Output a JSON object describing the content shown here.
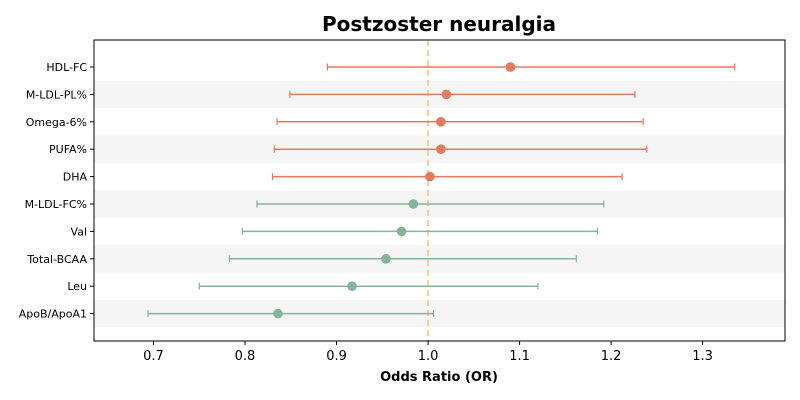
{
  "chart_data": {
    "type": "forest",
    "title": "Postzoster neuralgia",
    "xlabel": "Odds Ratio (OR)",
    "ylabel": "",
    "xlim": [
      0.635,
      1.39
    ],
    "xticks": [
      "0.7",
      "0.8",
      "0.9",
      "1.0",
      "1.1",
      "1.2",
      "1.3"
    ],
    "reference_line": 1.0,
    "colors": {
      "above_one": "#e07b5f",
      "below_one": "#85b39c",
      "reference_line": "#f3c78a",
      "band": "#f5f5f5"
    },
    "rows": [
      {
        "label": "HDL-FC",
        "or": 1.09,
        "lower": 0.89,
        "upper": 1.335
      },
      {
        "label": "M-LDL-PL%",
        "or": 1.02,
        "lower": 0.849,
        "upper": 1.226
      },
      {
        "label": "Omega-6%",
        "or": 1.014,
        "lower": 0.835,
        "upper": 1.235
      },
      {
        "label": "PUFA%",
        "or": 1.014,
        "lower": 0.832,
        "upper": 1.239
      },
      {
        "label": "DHA",
        "or": 1.002,
        "lower": 0.83,
        "upper": 1.212
      },
      {
        "label": "M-LDL-FC%",
        "or": 0.984,
        "lower": 0.813,
        "upper": 1.192
      },
      {
        "label": "Val",
        "or": 0.971,
        "lower": 0.797,
        "upper": 1.185
      },
      {
        "label": "Total-BCAA",
        "or": 0.954,
        "lower": 0.783,
        "upper": 1.162
      },
      {
        "label": "Leu",
        "or": 0.917,
        "lower": 0.75,
        "upper": 1.12
      },
      {
        "label": "ApoB/ApoA1",
        "or": 0.836,
        "lower": 0.694,
        "upper": 1.006
      }
    ]
  }
}
